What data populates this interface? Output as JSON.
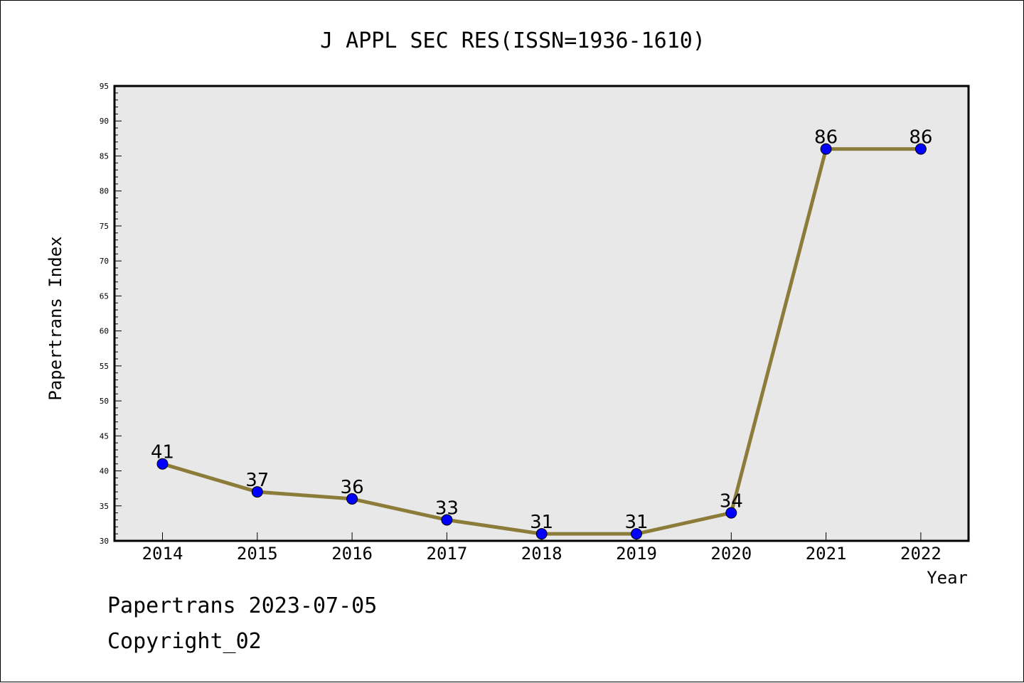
{
  "chart_data": {
    "type": "line",
    "title": "J APPL SEC RES(ISSN=1936-1610)",
    "xlabel": "Year",
    "ylabel": "Papertrans Index",
    "categories": [
      "2014",
      "2015",
      "2016",
      "2017",
      "2018",
      "2019",
      "2020",
      "2021",
      "2022"
    ],
    "series": [
      {
        "values": [
          41,
          37,
          36,
          33,
          31,
          31,
          34,
          86,
          86
        ]
      }
    ],
    "ylim": [
      30,
      95
    ],
    "yticks": [
      30,
      35,
      40,
      45,
      50,
      55,
      60,
      65,
      70,
      75,
      80,
      85,
      90,
      95
    ],
    "grid": false,
    "data_labels": true,
    "colors": {
      "line": "#8c7c3a",
      "marker": "#0000ff",
      "plot_background": "#e8e8e8",
      "frame": "#000000"
    }
  },
  "footer": {
    "date_text": "Papertrans 2023-07-05",
    "copyright_text": "Copyright_02"
  }
}
